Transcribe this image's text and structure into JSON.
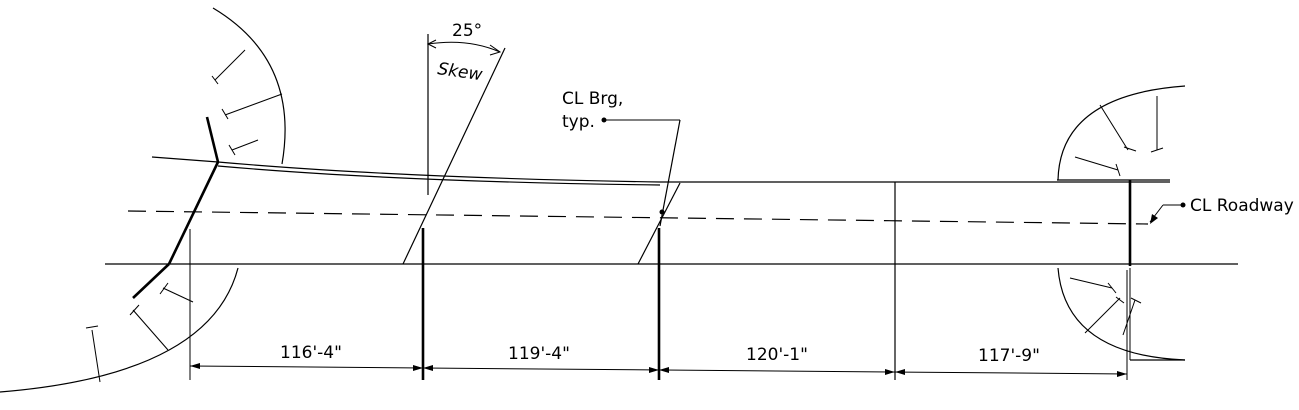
{
  "annotations": {
    "skew_angle": "25°",
    "skew_label": "Skew",
    "cl_brg_line1": "CL Brg,",
    "cl_brg_line2": "typ.",
    "cl_roadway": "CL Roadway"
  },
  "spans": [
    {
      "label": "116'-4\""
    },
    {
      "label": "119'-4\""
    },
    {
      "label": "120'-1\""
    },
    {
      "label": "117'-9\""
    }
  ]
}
